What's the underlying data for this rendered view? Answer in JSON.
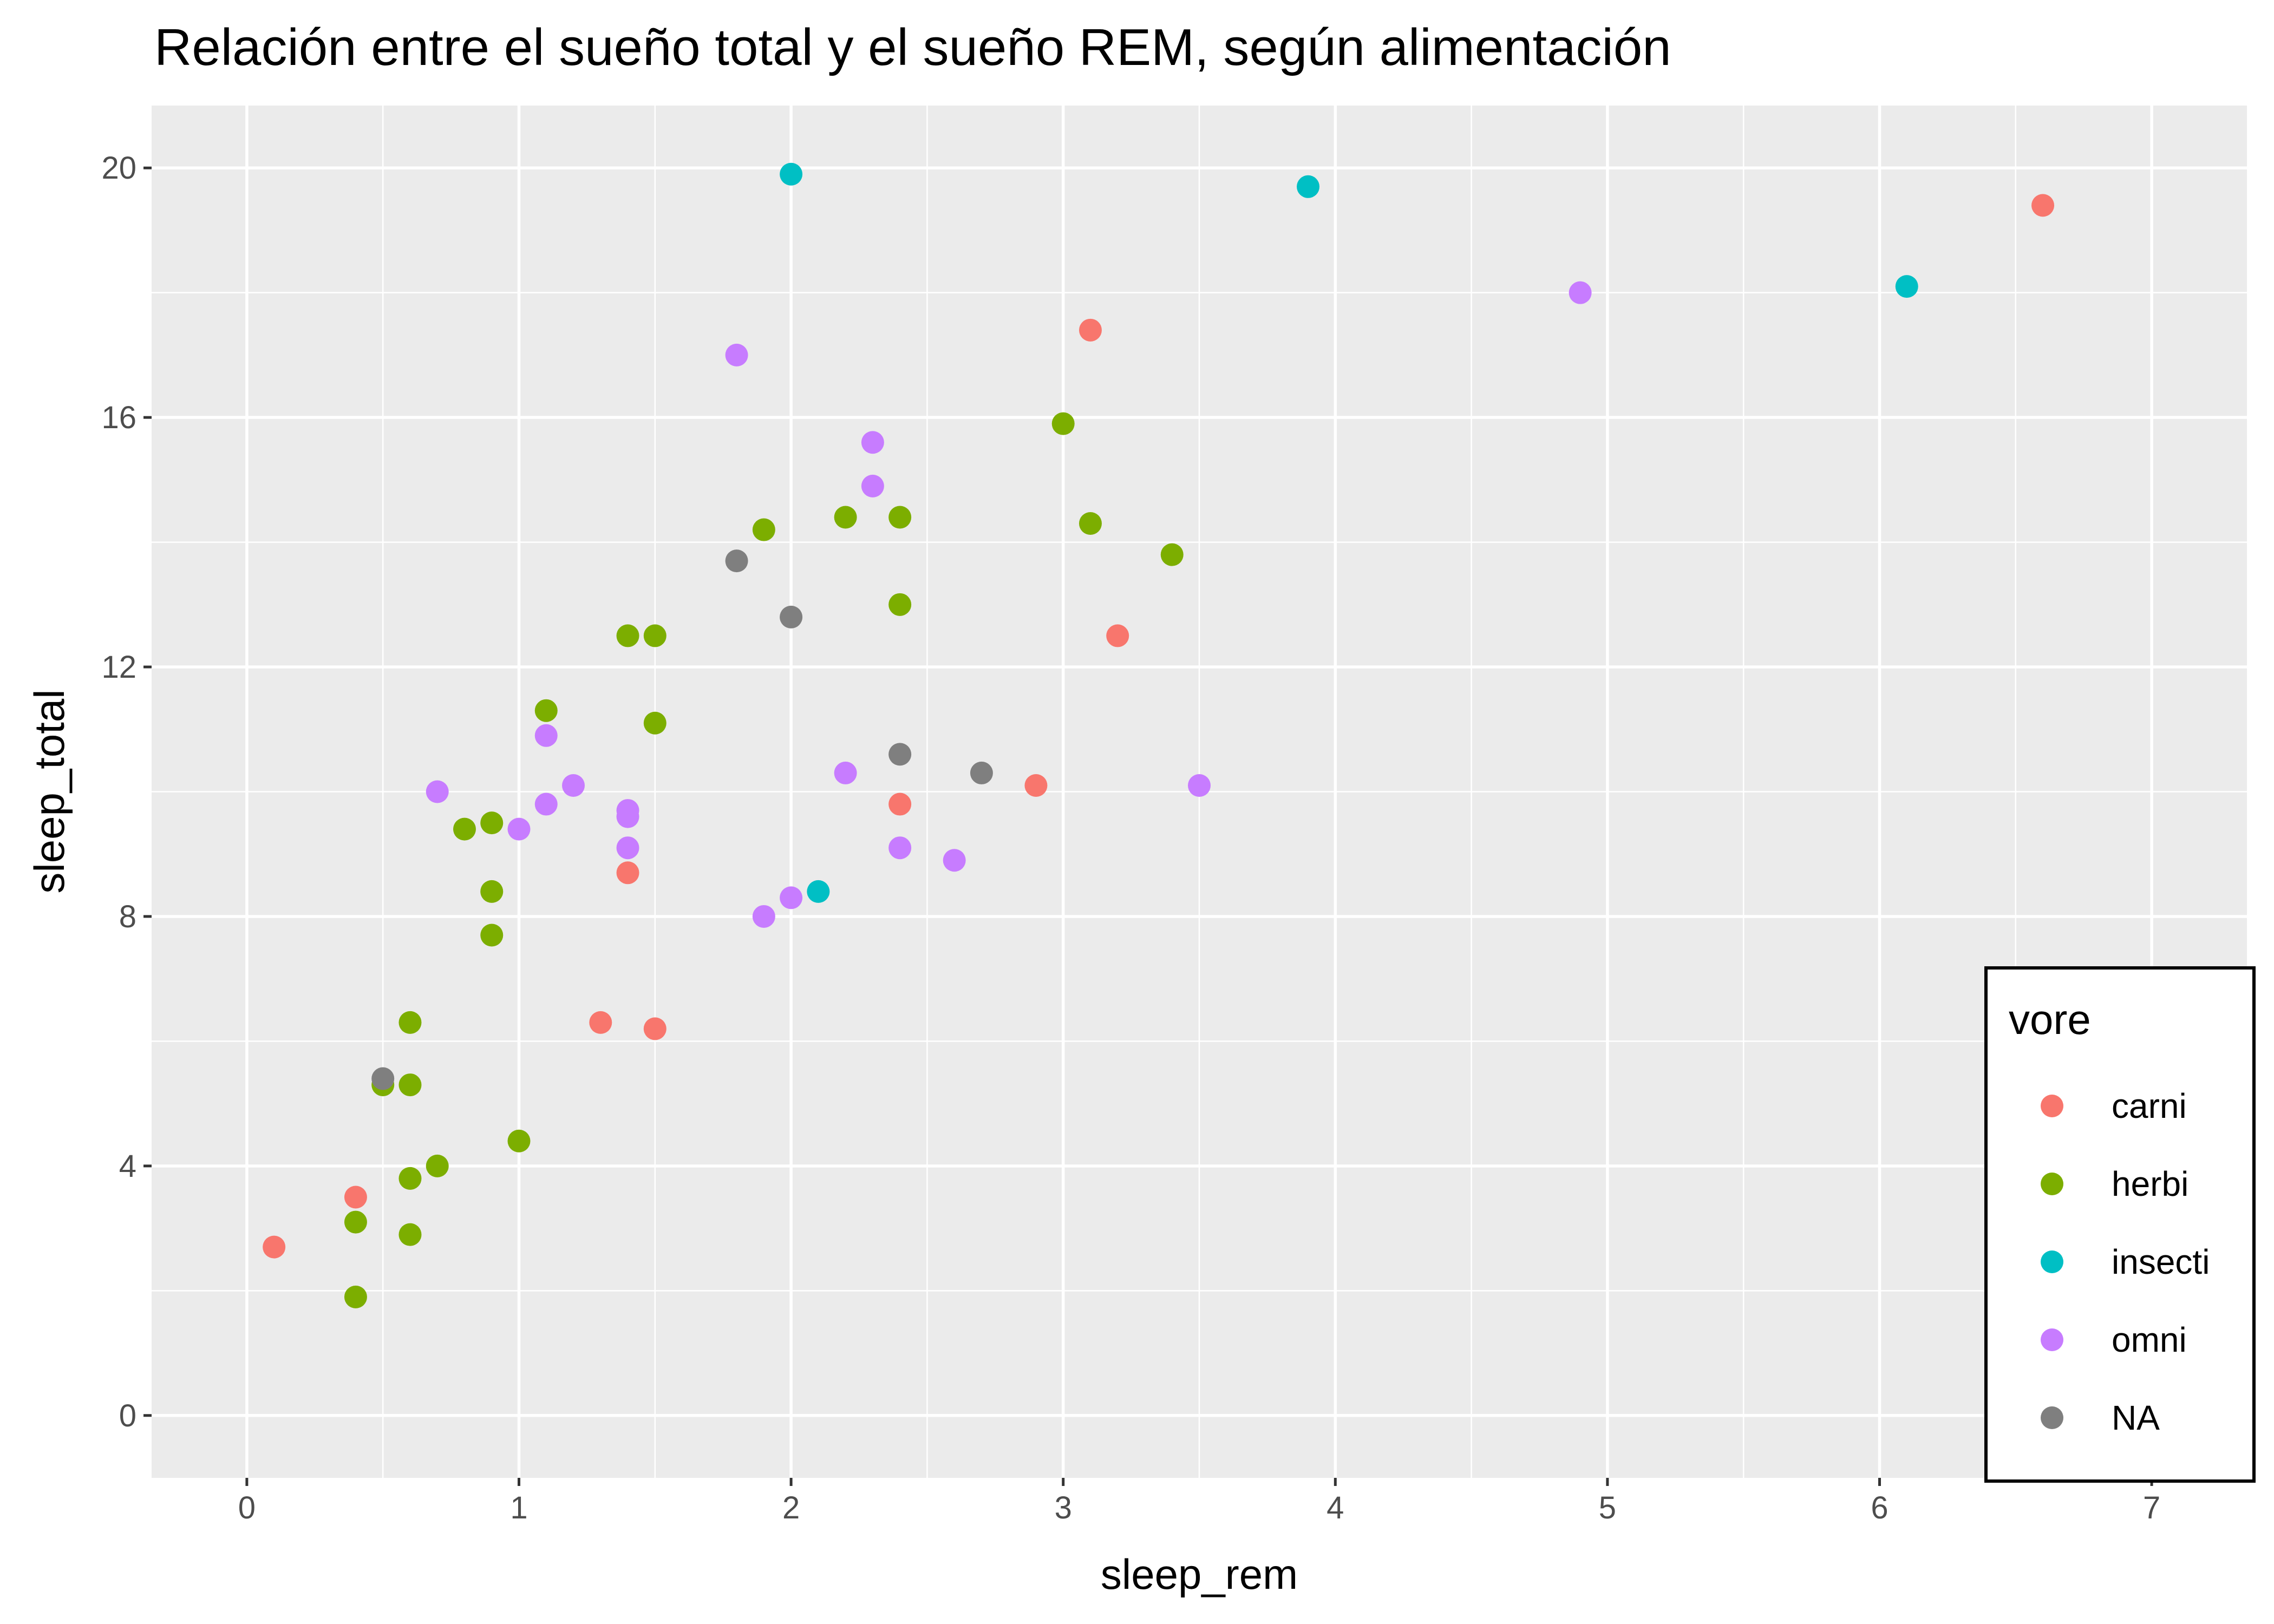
{
  "chart_data": {
    "type": "scatter",
    "title": "Relación entre el sueño total y el sueño REM, según alimentación",
    "xlabel": "sleep_rem",
    "ylabel": "sleep_total",
    "xlim": [
      -0.35,
      7.35
    ],
    "ylim": [
      -1,
      21
    ],
    "x_ticks": [
      0,
      1,
      2,
      3,
      4,
      5,
      6,
      7
    ],
    "y_ticks": [
      0,
      4,
      8,
      12,
      16,
      20
    ],
    "grid": true,
    "legend": {
      "title": "vore",
      "position": "bottom-right"
    },
    "series": [
      {
        "name": "carni",
        "color": "#F8766D",
        "points": [
          [
            0.1,
            2.7
          ],
          [
            0.4,
            3.5
          ],
          [
            1.3,
            6.3
          ],
          [
            1.4,
            8.7
          ],
          [
            1.5,
            6.2
          ],
          [
            2.4,
            9.8
          ],
          [
            2.9,
            10.1
          ],
          [
            3.1,
            17.4
          ],
          [
            3.2,
            12.5
          ],
          [
            6.6,
            19.4
          ]
        ]
      },
      {
        "name": "herbi",
        "color": "#7CAE00",
        "points": [
          [
            0.4,
            1.9
          ],
          [
            0.4,
            3.1
          ],
          [
            0.5,
            5.3
          ],
          [
            0.6,
            2.9
          ],
          [
            0.6,
            3.8
          ],
          [
            0.6,
            5.3
          ],
          [
            0.6,
            6.3
          ],
          [
            0.7,
            4.0
          ],
          [
            0.8,
            9.4
          ],
          [
            0.9,
            9.5
          ],
          [
            0.9,
            8.4
          ],
          [
            0.9,
            7.7
          ],
          [
            1.0,
            4.4
          ],
          [
            1.1,
            11.3
          ],
          [
            1.4,
            12.5
          ],
          [
            1.5,
            12.5
          ],
          [
            1.5,
            11.1
          ],
          [
            1.9,
            14.2
          ],
          [
            2.2,
            14.4
          ],
          [
            2.4,
            14.4
          ],
          [
            2.4,
            13.0
          ],
          [
            3.0,
            15.9
          ],
          [
            3.1,
            14.3
          ],
          [
            3.4,
            13.8
          ]
        ]
      },
      {
        "name": "insecti",
        "color": "#00BFC4",
        "points": [
          [
            2.0,
            19.9
          ],
          [
            2.1,
            8.4
          ],
          [
            3.9,
            19.7
          ],
          [
            6.1,
            18.1
          ]
        ]
      },
      {
        "name": "omni",
        "color": "#C77CFF",
        "points": [
          [
            0.7,
            10.0
          ],
          [
            1.0,
            9.4
          ],
          [
            1.1,
            10.9
          ],
          [
            1.1,
            9.8
          ],
          [
            1.2,
            10.1
          ],
          [
            1.4,
            9.7
          ],
          [
            1.4,
            9.6
          ],
          [
            1.4,
            9.1
          ],
          [
            1.8,
            17.0
          ],
          [
            1.9,
            8.0
          ],
          [
            2.0,
            8.3
          ],
          [
            2.2,
            10.3
          ],
          [
            2.3,
            15.6
          ],
          [
            2.3,
            14.9
          ],
          [
            2.4,
            9.1
          ],
          [
            2.6,
            8.9
          ],
          [
            3.5,
            10.1
          ],
          [
            4.9,
            18.0
          ]
        ]
      },
      {
        "name": "NA",
        "color": "#7F7F7F",
        "points": [
          [
            0.5,
            5.4
          ],
          [
            1.8,
            13.7
          ],
          [
            2.0,
            12.8
          ],
          [
            2.4,
            10.6
          ],
          [
            2.7,
            10.3
          ]
        ]
      }
    ]
  }
}
